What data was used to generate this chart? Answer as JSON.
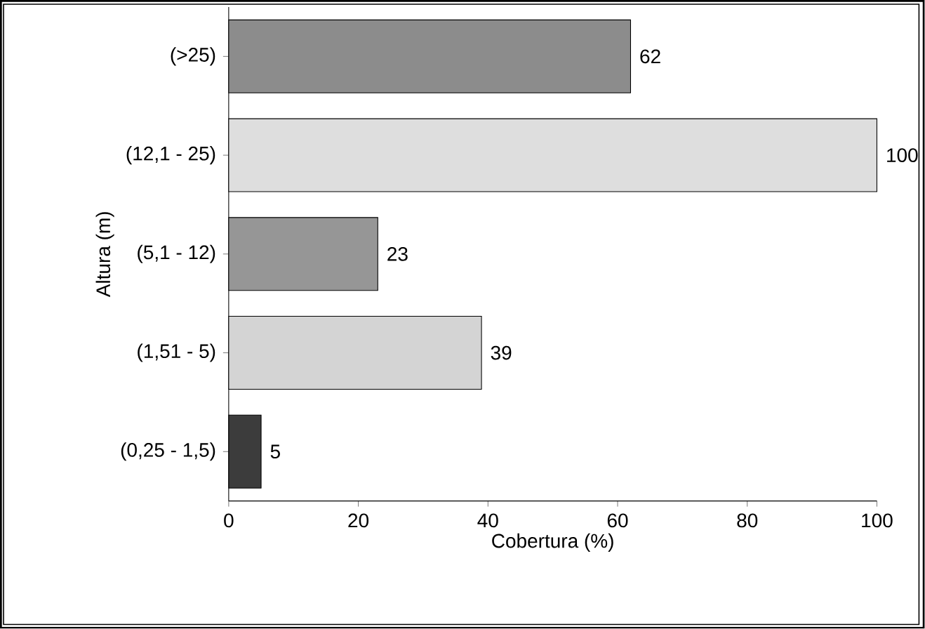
{
  "chart_data": {
    "type": "bar",
    "orientation": "horizontal",
    "xlabel": "Cobertura (%)",
    "ylabel": "Altura (m)",
    "categories": [
      "(>25)",
      "(12,1 - 25)",
      "(5,1 - 12)",
      "(1,51 - 5)",
      "(0,25 - 1,5)"
    ],
    "values": [
      62,
      100,
      23,
      39,
      5
    ],
    "colors": [
      "#8c8c8c",
      "#dedede",
      "#969696",
      "#d4d4d4",
      "#3c3c3c"
    ],
    "xlim": [
      0,
      100
    ],
    "xticks": [
      0,
      20,
      40,
      60,
      80,
      100
    ],
    "data_labels": true
  }
}
